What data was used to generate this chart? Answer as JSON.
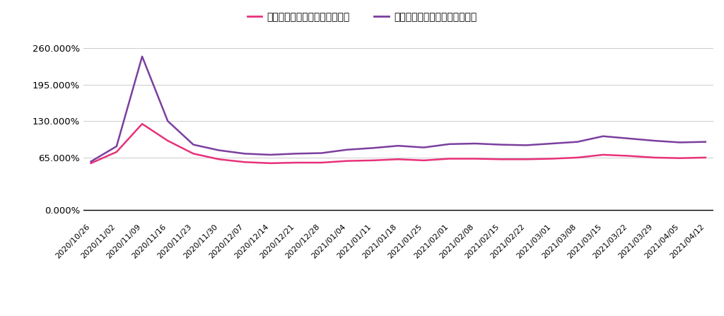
{
  "legend_simple": "平均利益率からの年利換算単利",
  "legend_compound": "平均利益率からの年利換算複利",
  "dates": [
    "2020/10/26",
    "2020/11/02",
    "2020/11/09",
    "2020/11/16",
    "2020/11/23",
    "2020/11/30",
    "2020/12/07",
    "2020/12/14",
    "2020/12/21",
    "2020/12/28",
    "2021/01/04",
    "2021/01/11",
    "2021/01/18",
    "2021/01/25",
    "2021/02/01",
    "2021/02/08",
    "2021/02/15",
    "2021/02/22",
    "2021/03/01",
    "2021/03/08",
    "2021/03/15",
    "2021/03/22",
    "2021/03/29",
    "2021/04/05",
    "2021/04/12"
  ],
  "simple": [
    55,
    75,
    125,
    95,
    72,
    62,
    57,
    55,
    56,
    56,
    59,
    60,
    62,
    60,
    63,
    63,
    62,
    62,
    63,
    65,
    70,
    68,
    65,
    64,
    65
  ],
  "compound": [
    58,
    85,
    245,
    130,
    88,
    78,
    72,
    70,
    72,
    73,
    79,
    82,
    86,
    83,
    89,
    90,
    88,
    87,
    90,
    93,
    103,
    99,
    95,
    92,
    93
  ],
  "color_simple": "#e8317a",
  "color_compound": "#7b3f9e",
  "background_color": "#ffffff",
  "grid_color": "#cccccc"
}
